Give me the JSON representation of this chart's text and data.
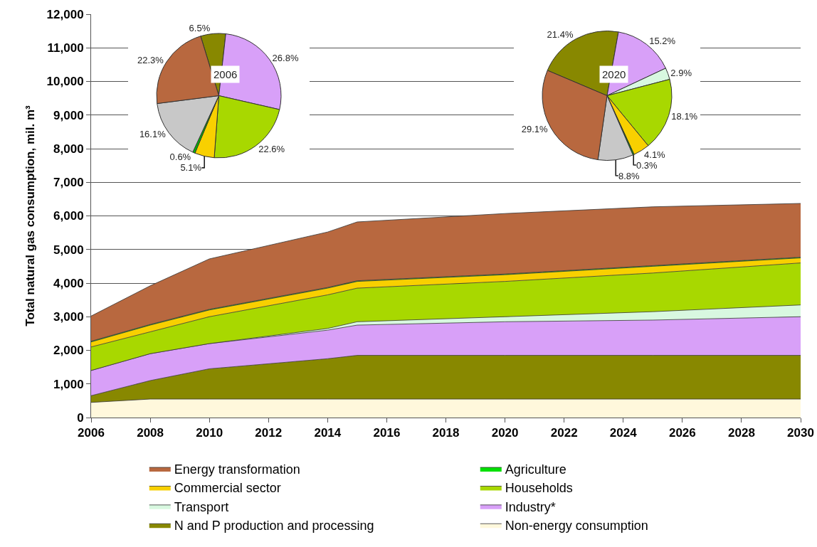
{
  "chart_data": [
    {
      "type": "area",
      "stacked": true,
      "ylabel": "Total natural gas consumption, mil. m³",
      "x": [
        2006,
        2008,
        2010,
        2014,
        2015,
        2020,
        2025,
        2030
      ],
      "series": [
        {
          "name": "Non-energy consumption",
          "color": "#fff8dc",
          "values": [
            450,
            550,
            550,
            550,
            550,
            550,
            550,
            550
          ]
        },
        {
          "name": "N and P production and processing",
          "color": "#888800",
          "values": [
            200,
            550,
            900,
            1200,
            1300,
            1300,
            1300,
            1300
          ]
        },
        {
          "name": "Industry*",
          "color": "#d8a0f8",
          "values": [
            750,
            800,
            750,
            850,
            900,
            1000,
            1050,
            1150
          ]
        },
        {
          "name": "Transport",
          "color": "#d8f8e0",
          "values": [
            0,
            0,
            0,
            50,
            100,
            150,
            250,
            350
          ]
        },
        {
          "name": "Households",
          "color": "#a8d800",
          "values": [
            700,
            650,
            800,
            1000,
            1000,
            1050,
            1150,
            1250
          ]
        },
        {
          "name": "Commercial sector",
          "color": "#f8d000",
          "values": [
            150,
            200,
            200,
            200,
            200,
            200,
            200,
            150
          ]
        },
        {
          "name": "Agriculture",
          "color": "#00e000",
          "values": [
            20,
            20,
            20,
            20,
            20,
            20,
            20,
            20
          ]
        },
        {
          "name": "Energy transformation",
          "color": "#b8683f",
          "values": [
            750,
            1150,
            1500,
            1650,
            1750,
            1800,
            1750,
            1600
          ]
        }
      ],
      "xlim": [
        2006,
        2030
      ],
      "xticks": [
        2006,
        2008,
        2010,
        2012,
        2014,
        2016,
        2018,
        2020,
        2022,
        2024,
        2026,
        2028,
        2030
      ],
      "ylim": [
        0,
        12000
      ],
      "yticks": [
        0,
        {
          "value": 1000,
          "label": "1,000"
        },
        {
          "value": 2000,
          "label": "2,000"
        },
        {
          "value": 3000,
          "label": "3,000"
        },
        {
          "value": 4000,
          "label": "4,000"
        },
        {
          "value": 5000,
          "label": "5,000"
        },
        {
          "value": 6000,
          "label": "6,000"
        },
        {
          "value": 7000,
          "label": "7,000"
        },
        {
          "value": 8000,
          "label": "8,000"
        },
        {
          "value": 9000,
          "label": "9,000"
        },
        {
          "value": 10000,
          "label": "10,000"
        },
        {
          "value": 11000,
          "label": "11,000"
        },
        {
          "value": 12000,
          "label": "12,000"
        }
      ],
      "grid": "y",
      "legend": "bottom"
    },
    {
      "type": "pie",
      "title": "2006",
      "categories": [
        null,
        null,
        null,
        null,
        null,
        null,
        null
      ],
      "values": [
        6.5,
        26.8,
        22.6,
        5.1,
        0.6,
        16.1,
        22.3
      ],
      "value_labels": [
        "6.5%",
        "26.8%",
        "22.6%",
        "5.1%",
        "0.6%",
        "16.1%",
        "22.3%"
      ],
      "colors": [
        "#888800",
        "#d8a0f8",
        "#a8d800",
        "#f8d000",
        "#00c000",
        "#c8c8c8",
        "#b8683f"
      ]
    },
    {
      "type": "pie",
      "title": "2020",
      "categories": [
        null,
        null,
        null,
        null,
        null,
        null,
        null,
        null
      ],
      "values": [
        21.4,
        15.2,
        2.9,
        18.1,
        4.1,
        0.3,
        8.8,
        29.1
      ],
      "value_labels": [
        "21.4%",
        "15.2%",
        "2.9%",
        "18.1%",
        "4.1%",
        "0.3%",
        "8.8%",
        "29.1%"
      ],
      "colors": [
        "#888800",
        "#d8a0f8",
        "#d8f8e0",
        "#a8d800",
        "#f8d000",
        "#00c000",
        "#c8c8c8",
        "#b8683f"
      ]
    }
  ]
}
